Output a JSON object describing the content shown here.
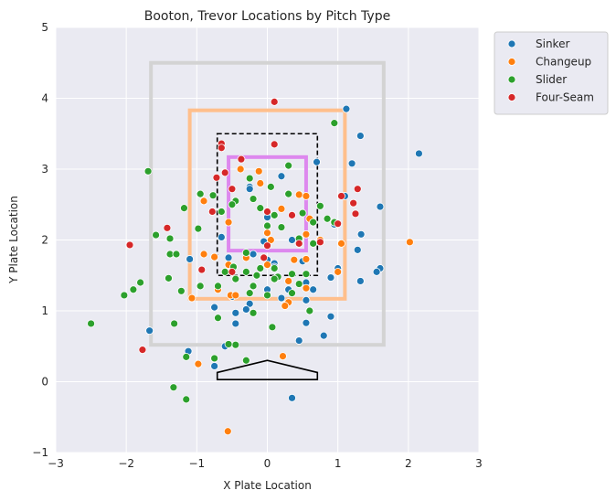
{
  "chart_data": {
    "type": "scatter",
    "title": "Booton, Trevor Locations by Pitch Type",
    "xlabel": "X Plate Location",
    "ylabel": "Y Plate Location",
    "xlim": [
      -3,
      3
    ],
    "ylim": [
      -1,
      5
    ],
    "xticks": [
      "−3",
      "−2",
      "−1",
      "0",
      "1",
      "2",
      "3"
    ],
    "yticks": [
      "−1",
      "0",
      "1",
      "2",
      "3",
      "4",
      "5"
    ],
    "grid": true,
    "legend_position": "outside-top-right",
    "colors": {
      "Sinker": "#1f77b4",
      "Changeup": "#ff7f0e",
      "Slider": "#2ca02c",
      "Four-Seam": "#d62728",
      "outer_zone": "#d3d3d3",
      "orange_zone": "#ffbf8c",
      "purple_zone": "#dd88ee",
      "strike_zone": "#000000",
      "plot_bg": "#eaeaf2"
    },
    "zones": {
      "outer": [
        -1.65,
        0.52,
        1.65,
        4.5
      ],
      "orange": [
        -1.1,
        1.17,
        1.1,
        3.83
      ],
      "dashed": [
        -0.71,
        1.5,
        0.71,
        3.5
      ],
      "purple": [
        -0.55,
        1.85,
        0.55,
        3.17
      ]
    },
    "home_plate": [
      [
        -0.71,
        0.08
      ],
      [
        -0.71,
        0.13
      ],
      [
        0,
        0.3
      ],
      [
        0.71,
        0.13
      ],
      [
        0.71,
        0.03
      ],
      [
        -0.71,
        0.03
      ]
    ],
    "series": [
      {
        "name": "Sinker",
        "points": [
          [
            1.12,
            3.85
          ],
          [
            1.32,
            3.47
          ],
          [
            2.15,
            3.22
          ],
          [
            1.2,
            3.08
          ],
          [
            0.7,
            3.1
          ],
          [
            0.2,
            2.9
          ],
          [
            -0.25,
            2.75
          ],
          [
            -0.25,
            2.72
          ],
          [
            0.0,
            2.32
          ],
          [
            1.1,
            2.62
          ],
          [
            1.6,
            2.47
          ],
          [
            0.95,
            2.22
          ],
          [
            1.33,
            2.08
          ],
          [
            -0.65,
            2.04
          ],
          [
            0.35,
            2.0
          ],
          [
            -0.05,
            1.98
          ],
          [
            1.28,
            1.86
          ],
          [
            0.0,
            1.72
          ],
          [
            0.1,
            1.67
          ],
          [
            1.0,
            1.6
          ],
          [
            1.6,
            1.6
          ],
          [
            1.55,
            1.55
          ],
          [
            -1.1,
            1.73
          ],
          [
            -0.55,
            1.75
          ],
          [
            -0.2,
            1.8
          ],
          [
            0.5,
            1.7
          ],
          [
            0.9,
            1.47
          ],
          [
            1.32,
            1.42
          ],
          [
            0.55,
            1.4
          ],
          [
            0.65,
            1.3
          ],
          [
            -0.5,
            1.2
          ],
          [
            -0.25,
            1.1
          ],
          [
            0.1,
            1.62
          ],
          [
            0.55,
            1.15
          ],
          [
            0.3,
            1.3
          ],
          [
            -0.75,
            1.05
          ],
          [
            -0.45,
            0.97
          ],
          [
            -0.45,
            0.82
          ],
          [
            0.55,
            0.83
          ],
          [
            0.9,
            0.92
          ],
          [
            0.45,
            0.58
          ],
          [
            0.8,
            0.65
          ],
          [
            -1.67,
            0.72
          ],
          [
            -1.12,
            0.43
          ],
          [
            -0.75,
            0.22
          ],
          [
            0.35,
            -0.23
          ],
          [
            -0.3,
            1.02
          ],
          [
            0.0,
            1.3
          ],
          [
            0.2,
            1.18
          ],
          [
            -0.6,
            0.5
          ]
        ]
      },
      {
        "name": "Changeup",
        "points": [
          [
            -0.12,
            2.97
          ],
          [
            -0.1,
            2.8
          ],
          [
            0.45,
            2.64
          ],
          [
            0.2,
            2.44
          ],
          [
            -0.55,
            2.25
          ],
          [
            0.35,
            2.35
          ],
          [
            0.6,
            2.3
          ],
          [
            0.0,
            2.1
          ],
          [
            0.55,
            2.08
          ],
          [
            -0.9,
            2.55
          ],
          [
            1.05,
            1.95
          ],
          [
            2.02,
            1.97
          ],
          [
            -0.9,
            1.8
          ],
          [
            -0.75,
            1.76
          ],
          [
            -0.3,
            1.75
          ],
          [
            0.55,
            1.73
          ],
          [
            0.38,
            1.72
          ],
          [
            -0.55,
            1.65
          ],
          [
            0.0,
            1.65
          ],
          [
            1.0,
            1.55
          ],
          [
            -0.52,
            1.22
          ],
          [
            -1.07,
            1.18
          ],
          [
            0.55,
            1.32
          ],
          [
            0.3,
            1.12
          ],
          [
            0.25,
            1.07
          ],
          [
            0.22,
            0.36
          ],
          [
            -0.98,
            0.25
          ],
          [
            -0.56,
            -0.7
          ],
          [
            -0.38,
            3.0
          ],
          [
            -0.45,
            1.22
          ],
          [
            0.05,
            2.0
          ],
          [
            0.3,
            1.42
          ],
          [
            0.55,
            2.62
          ],
          [
            0.75,
            2.0
          ],
          [
            -0.7,
            1.3
          ]
        ]
      },
      {
        "name": "Slider",
        "points": [
          [
            0.95,
            3.65
          ],
          [
            -1.69,
            2.97
          ],
          [
            -0.25,
            2.87
          ],
          [
            -0.77,
            2.63
          ],
          [
            -0.95,
            2.65
          ],
          [
            -0.2,
            2.58
          ],
          [
            -0.45,
            2.55
          ],
          [
            0.3,
            2.65
          ],
          [
            -0.1,
            2.45
          ],
          [
            0.1,
            2.35
          ],
          [
            0.5,
            2.38
          ],
          [
            0.75,
            2.48
          ],
          [
            -0.5,
            2.5
          ],
          [
            -0.65,
            2.4
          ],
          [
            0.0,
            2.2
          ],
          [
            0.2,
            2.18
          ],
          [
            0.85,
            2.3
          ],
          [
            0.95,
            2.25
          ],
          [
            0.65,
            2.25
          ],
          [
            -1.18,
            2.45
          ],
          [
            -0.98,
            2.16
          ],
          [
            -1.58,
            2.07
          ],
          [
            -1.38,
            2.02
          ],
          [
            -1.38,
            1.8
          ],
          [
            -1.29,
            1.8
          ],
          [
            0.65,
            1.95
          ],
          [
            0.45,
            2.02
          ],
          [
            -0.48,
            1.62
          ],
          [
            -0.3,
            1.55
          ],
          [
            -0.15,
            1.5
          ],
          [
            -0.1,
            1.6
          ],
          [
            -0.45,
            1.45
          ],
          [
            0.1,
            1.6
          ],
          [
            0.15,
            1.48
          ],
          [
            0.35,
            1.52
          ],
          [
            -0.7,
            1.35
          ],
          [
            -0.2,
            1.35
          ],
          [
            -0.25,
            1.25
          ],
          [
            0.0,
            1.22
          ],
          [
            0.1,
            1.45
          ],
          [
            0.55,
            1.52
          ],
          [
            -1.4,
            1.46
          ],
          [
            -1.8,
            1.4
          ],
          [
            -1.9,
            1.3
          ],
          [
            -2.03,
            1.22
          ],
          [
            -1.22,
            1.28
          ],
          [
            -0.95,
            1.35
          ],
          [
            -0.7,
            0.9
          ],
          [
            -0.2,
            0.97
          ],
          [
            -1.32,
            0.82
          ],
          [
            -2.5,
            0.82
          ],
          [
            0.07,
            0.77
          ],
          [
            0.6,
            1.0
          ],
          [
            -0.45,
            0.52
          ],
          [
            -0.55,
            0.53
          ],
          [
            -1.15,
            0.35
          ],
          [
            -0.75,
            0.33
          ],
          [
            -0.3,
            0.3
          ],
          [
            -1.33,
            -0.08
          ],
          [
            -1.15,
            -0.25
          ],
          [
            0.35,
            1.25
          ],
          [
            -0.3,
            1.82
          ],
          [
            0.3,
            3.05
          ],
          [
            0.05,
            2.75
          ],
          [
            -0.6,
            1.55
          ],
          [
            0.45,
            1.38
          ]
        ]
      },
      {
        "name": "Four-Seam",
        "points": [
          [
            0.1,
            3.95
          ],
          [
            -0.65,
            3.36
          ],
          [
            -0.65,
            3.3
          ],
          [
            0.1,
            3.35
          ],
          [
            -0.37,
            3.14
          ],
          [
            -0.72,
            2.88
          ],
          [
            1.28,
            2.72
          ],
          [
            -0.5,
            2.72
          ],
          [
            1.05,
            2.62
          ],
          [
            1.22,
            2.52
          ],
          [
            1.25,
            2.37
          ],
          [
            0.0,
            2.4
          ],
          [
            0.35,
            2.35
          ],
          [
            -0.78,
            2.4
          ],
          [
            1.0,
            2.23
          ],
          [
            -1.42,
            2.17
          ],
          [
            -1.95,
            1.93
          ],
          [
            0.75,
            1.97
          ],
          [
            -0.5,
            1.55
          ],
          [
            -0.05,
            1.75
          ],
          [
            -0.93,
            1.58
          ],
          [
            0.0,
            1.92
          ],
          [
            -1.77,
            0.45
          ],
          [
            -0.6,
            2.95
          ],
          [
            0.45,
            1.95
          ]
        ]
      }
    ]
  }
}
